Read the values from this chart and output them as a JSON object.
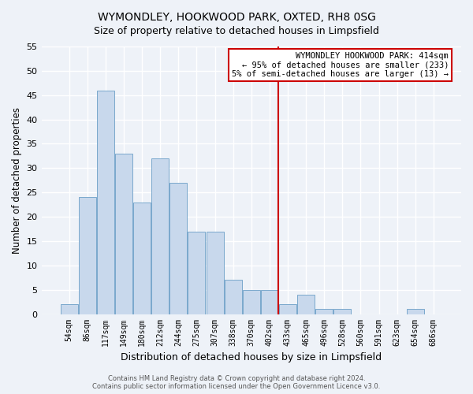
{
  "title": "WYMONDLEY, HOOKWOOD PARK, OXTED, RH8 0SG",
  "subtitle": "Size of property relative to detached houses in Limpsfield",
  "xlabel": "Distribution of detached houses by size in Limpsfield",
  "ylabel": "Number of detached properties",
  "bar_labels": [
    "54sqm",
    "86sqm",
    "117sqm",
    "149sqm",
    "180sqm",
    "212sqm",
    "244sqm",
    "275sqm",
    "307sqm",
    "338sqm",
    "370sqm",
    "402sqm",
    "433sqm",
    "465sqm",
    "496sqm",
    "528sqm",
    "560sqm",
    "591sqm",
    "623sqm",
    "654sqm",
    "686sqm"
  ],
  "bar_values": [
    2,
    24,
    46,
    33,
    23,
    32,
    27,
    17,
    17,
    7,
    5,
    5,
    2,
    4,
    1,
    1,
    0,
    0,
    0,
    1,
    0
  ],
  "bar_color": "#c8d8ec",
  "bar_edge_color": "#7aa8cc",
  "ylim": [
    0,
    55
  ],
  "yticks": [
    0,
    5,
    10,
    15,
    20,
    25,
    30,
    35,
    40,
    45,
    50,
    55
  ],
  "vline_x": 11.5,
  "vline_color": "#cc0000",
  "annotation_box_title": "WYMONDLEY HOOKWOOD PARK: 414sqm",
  "annotation_line1": "← 95% of detached houses are smaller (233)",
  "annotation_line2": "5% of semi-detached houses are larger (13) →",
  "footer_line1": "Contains HM Land Registry data © Crown copyright and database right 2024.",
  "footer_line2": "Contains public sector information licensed under the Open Government Licence v3.0.",
  "bg_color": "#eef2f8",
  "grid_color": "#d0d8e8",
  "ann_box_color": "#cc0000"
}
